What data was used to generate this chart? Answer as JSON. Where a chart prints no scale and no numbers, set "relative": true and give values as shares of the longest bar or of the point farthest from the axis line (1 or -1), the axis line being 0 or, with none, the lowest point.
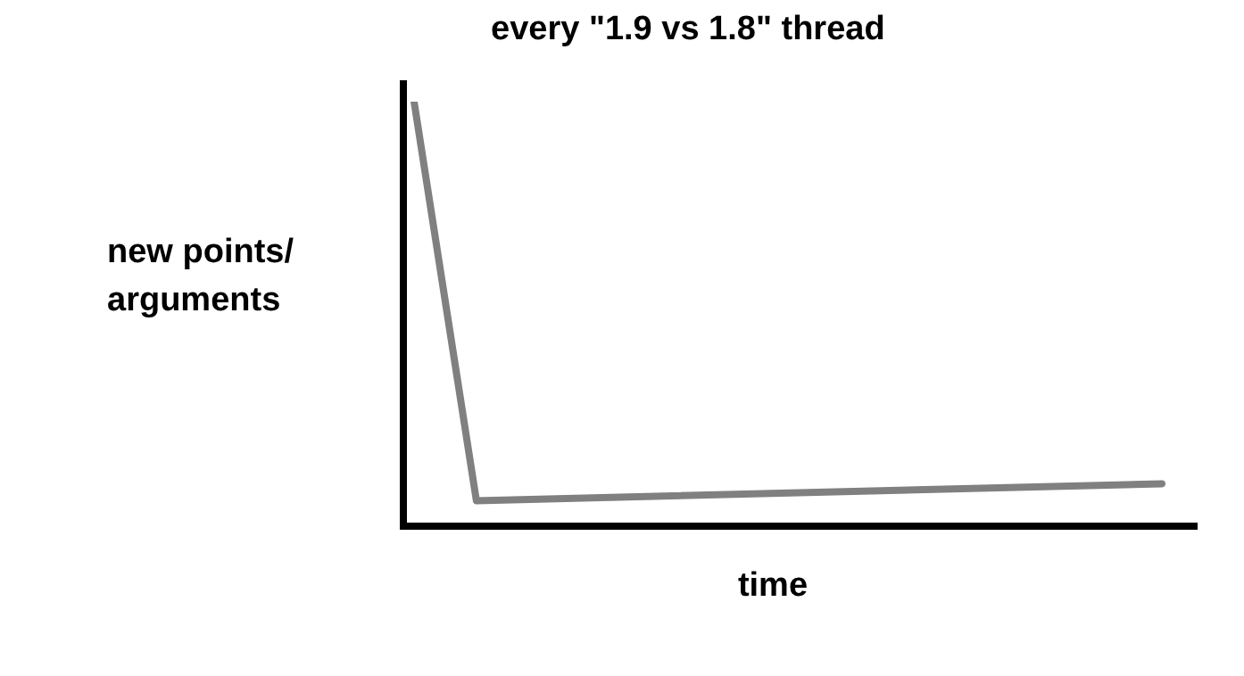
{
  "chart_data": {
    "type": "line",
    "title": "every \"1.9 vs 1.8\" thread",
    "xlabel": "time",
    "ylabel": "new points/ arguments",
    "relative": true,
    "marker": "none",
    "categories": [
      null,
      null,
      null,
      null,
      null,
      null,
      null,
      null,
      null,
      null,
      null,
      null,
      null
    ],
    "series": [
      {
        "color": "#808080",
        "values": [
          1,
          0.06,
          null,
          null,
          null,
          null,
          null,
          null,
          null,
          null,
          null,
          null,
          0.1
        ]
      }
    ]
  }
}
